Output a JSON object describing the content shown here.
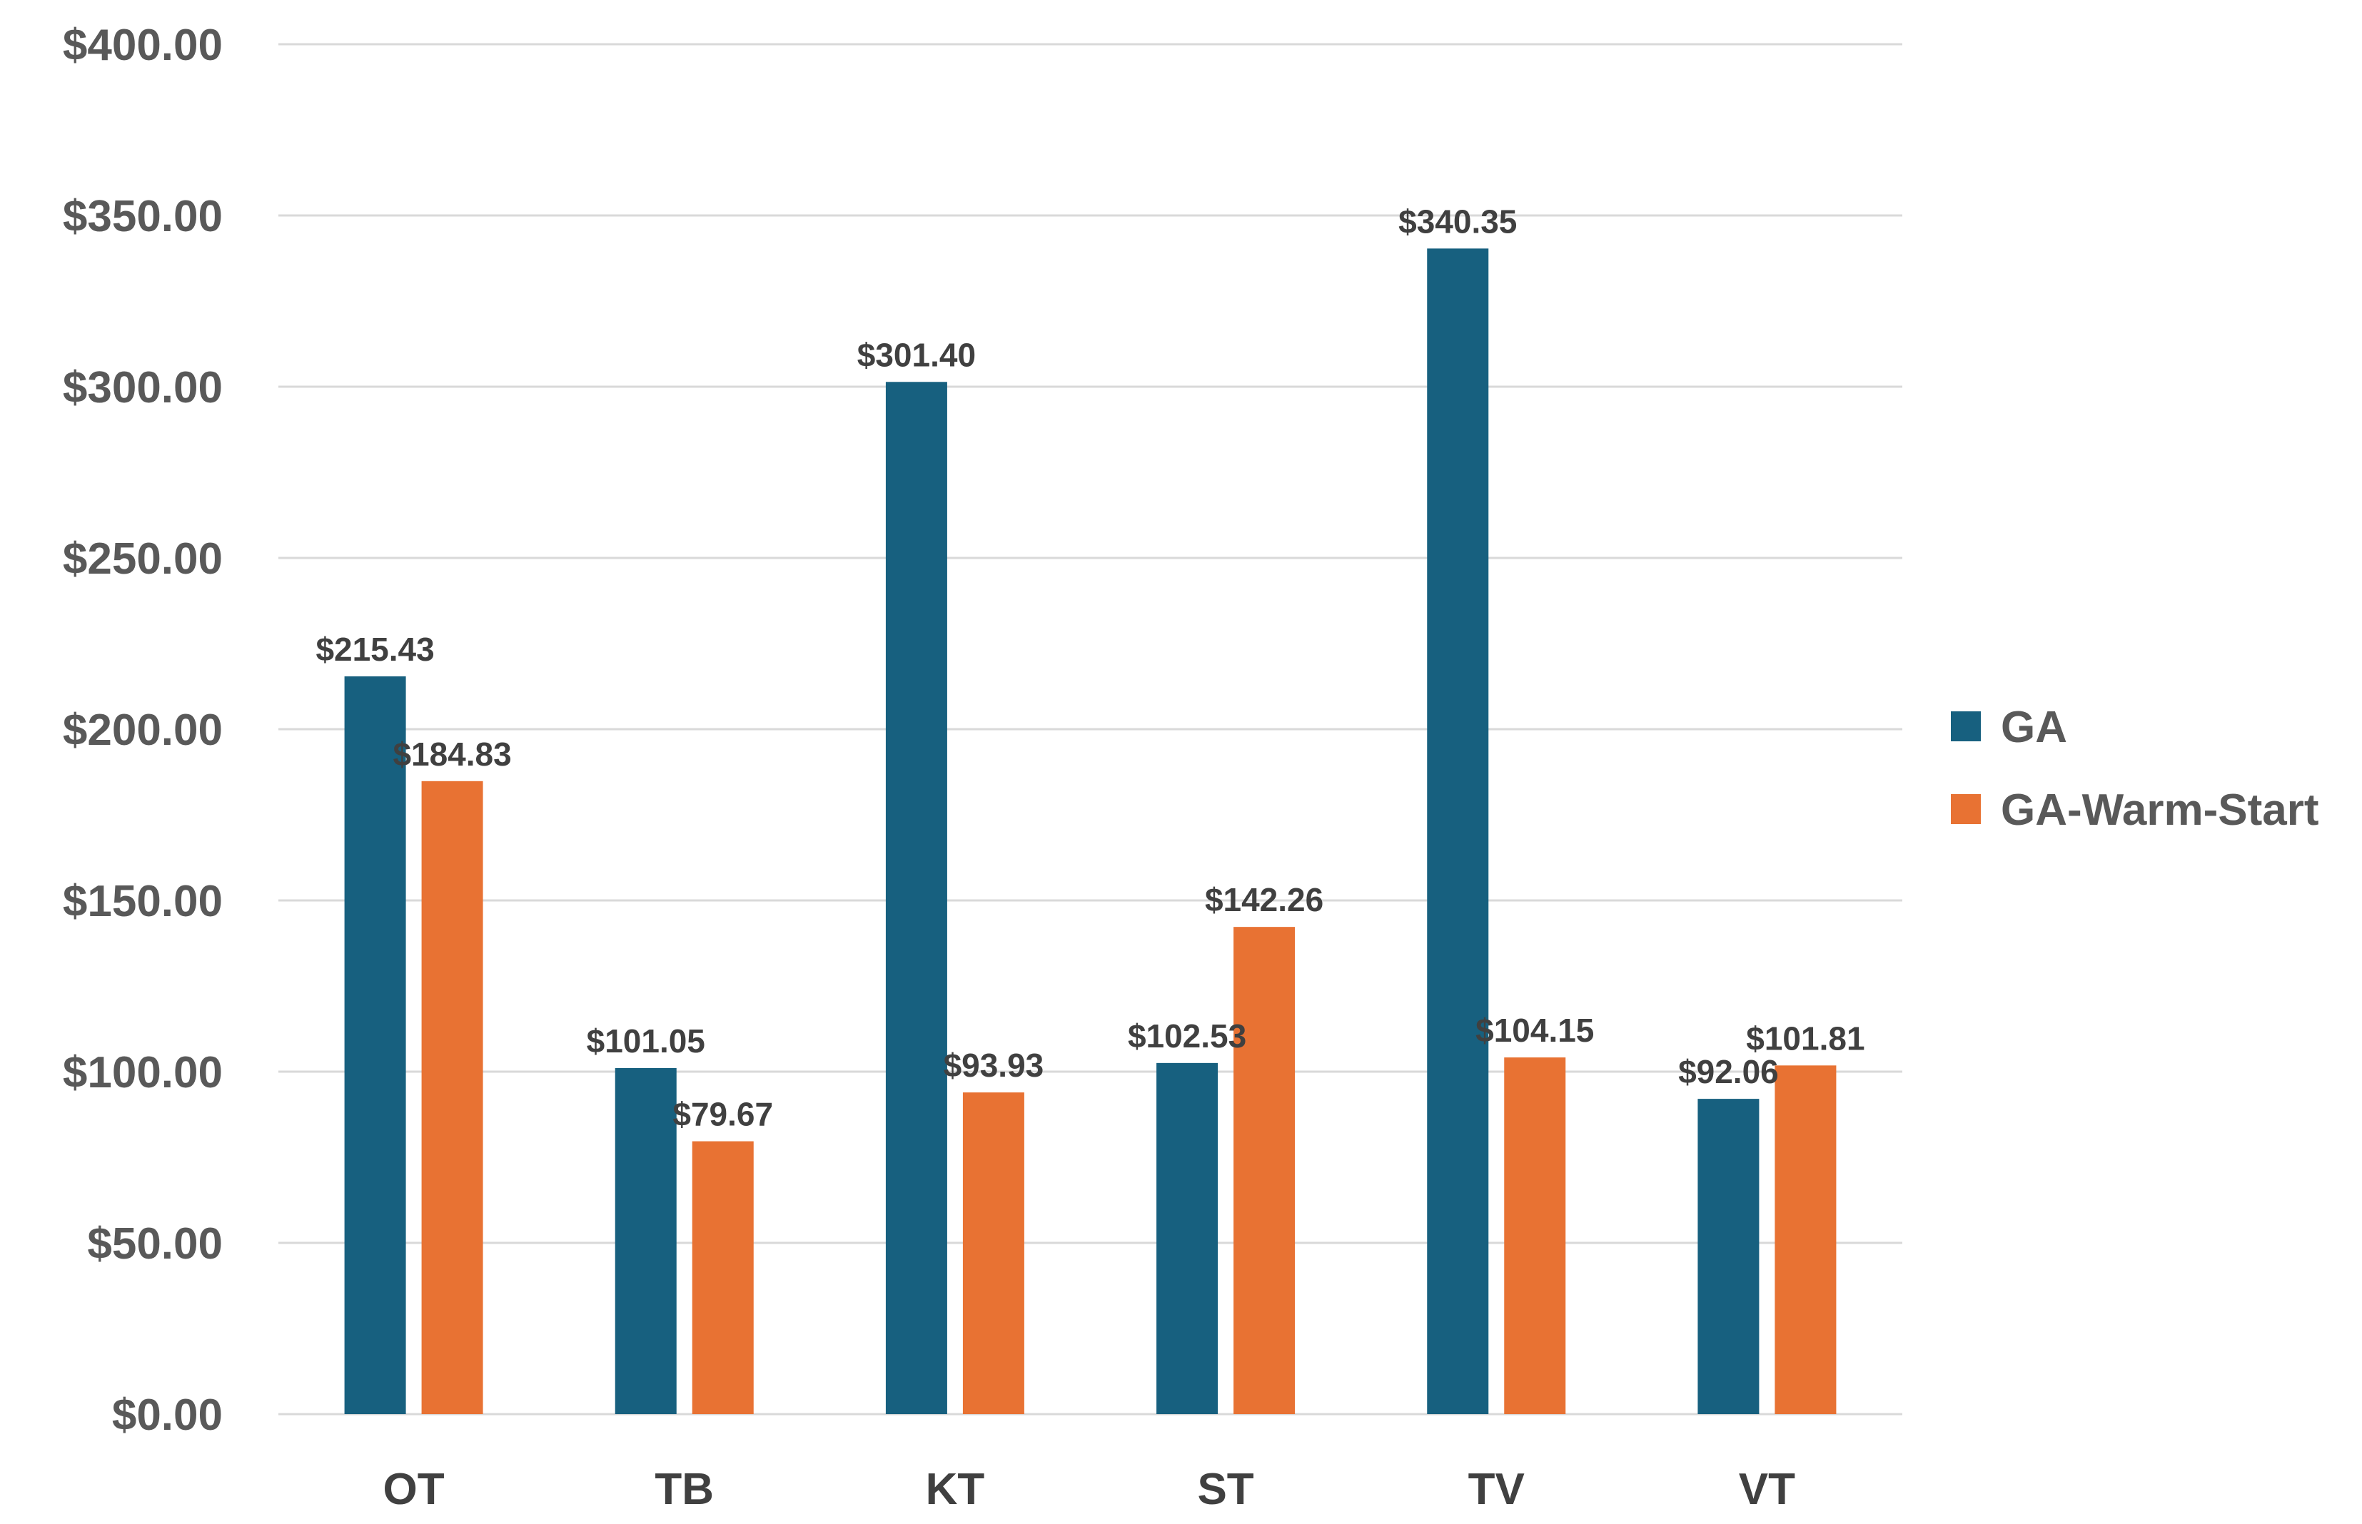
{
  "chart_data": {
    "type": "bar",
    "title": "",
    "xlabel": "",
    "ylabel": "",
    "ylim": [
      0,
      400
    ],
    "yticks": [
      0,
      50,
      100,
      150,
      200,
      250,
      300,
      350,
      400
    ],
    "ytick_labels": [
      "$0.00",
      "$50.00",
      "$100.00",
      "$150.00",
      "$200.00",
      "$250.00",
      "$300.00",
      "$350.00",
      "$400.00"
    ],
    "grid": true,
    "legend_position": "right",
    "categories": [
      "OT",
      "TB",
      "KT",
      "ST",
      "TV",
      "VT"
    ],
    "series": [
      {
        "name": "GA",
        "color": "#17607f",
        "values": [
          215.43,
          101.05,
          301.4,
          102.53,
          340.35,
          92.06
        ],
        "labels": [
          "$215.43",
          "$101.05",
          "$301.40",
          "$102.53",
          "$340.35",
          "$92.06"
        ]
      },
      {
        "name": "GA-Warm-Start",
        "color": "#e87233",
        "values": [
          184.83,
          79.67,
          93.93,
          142.26,
          104.15,
          101.81
        ],
        "labels": [
          "$184.83",
          "$79.67",
          "$93.93",
          "$142.26",
          "$104.15",
          "$101.81"
        ]
      }
    ]
  }
}
